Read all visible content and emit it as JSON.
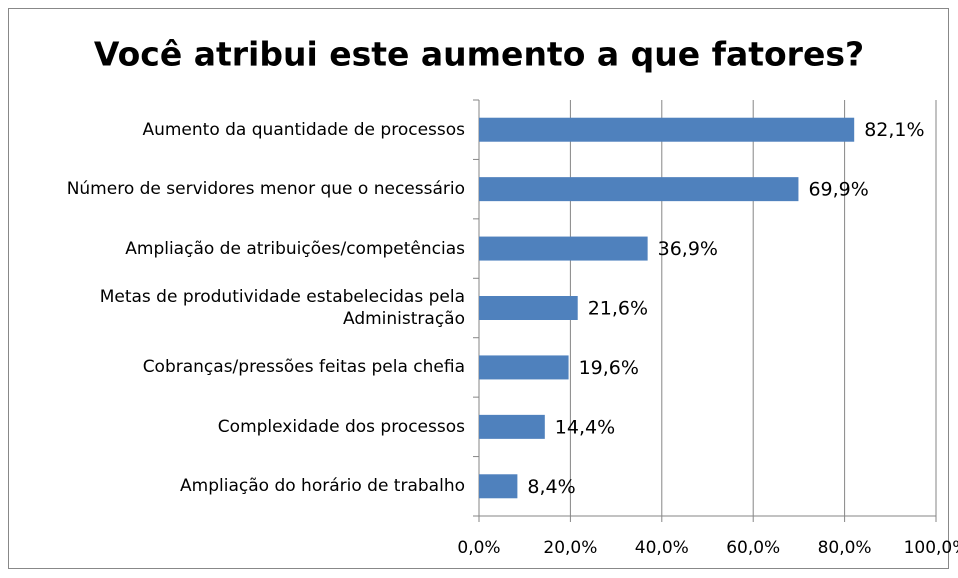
{
  "chart_data": {
    "type": "bar",
    "orientation": "horizontal",
    "title": "Você atribui este aumento a que fatores?",
    "categories": [
      "Aumento da quantidade de processos",
      "Número de servidores menor que o necessário",
      "Ampliação de atribuições/competências",
      "Metas de produtividade estabelecidas pela Administração",
      "Cobranças/pressões feitas pela chefia",
      "Complexidade dos processos",
      "Ampliação do horário de trabalho"
    ],
    "values": [
      82.1,
      69.9,
      36.9,
      21.6,
      19.6,
      14.4,
      8.4
    ],
    "value_labels": [
      "82,1%",
      "69,9%",
      "36,9%",
      "21,6%",
      "19,6%",
      "14,4%",
      "8,4%"
    ],
    "color": "#4f81bd",
    "xlim": [
      0,
      100
    ],
    "xticks": [
      {
        "value": 0,
        "label": "0,0%"
      },
      {
        "value": 20,
        "label": "20,0%"
      },
      {
        "value": 40,
        "label": "40,0%"
      },
      {
        "value": 60,
        "label": "60,0%"
      },
      {
        "value": 80,
        "label": "80,0%"
      },
      {
        "value": 100,
        "label": "100,0%"
      }
    ],
    "grid": true
  }
}
